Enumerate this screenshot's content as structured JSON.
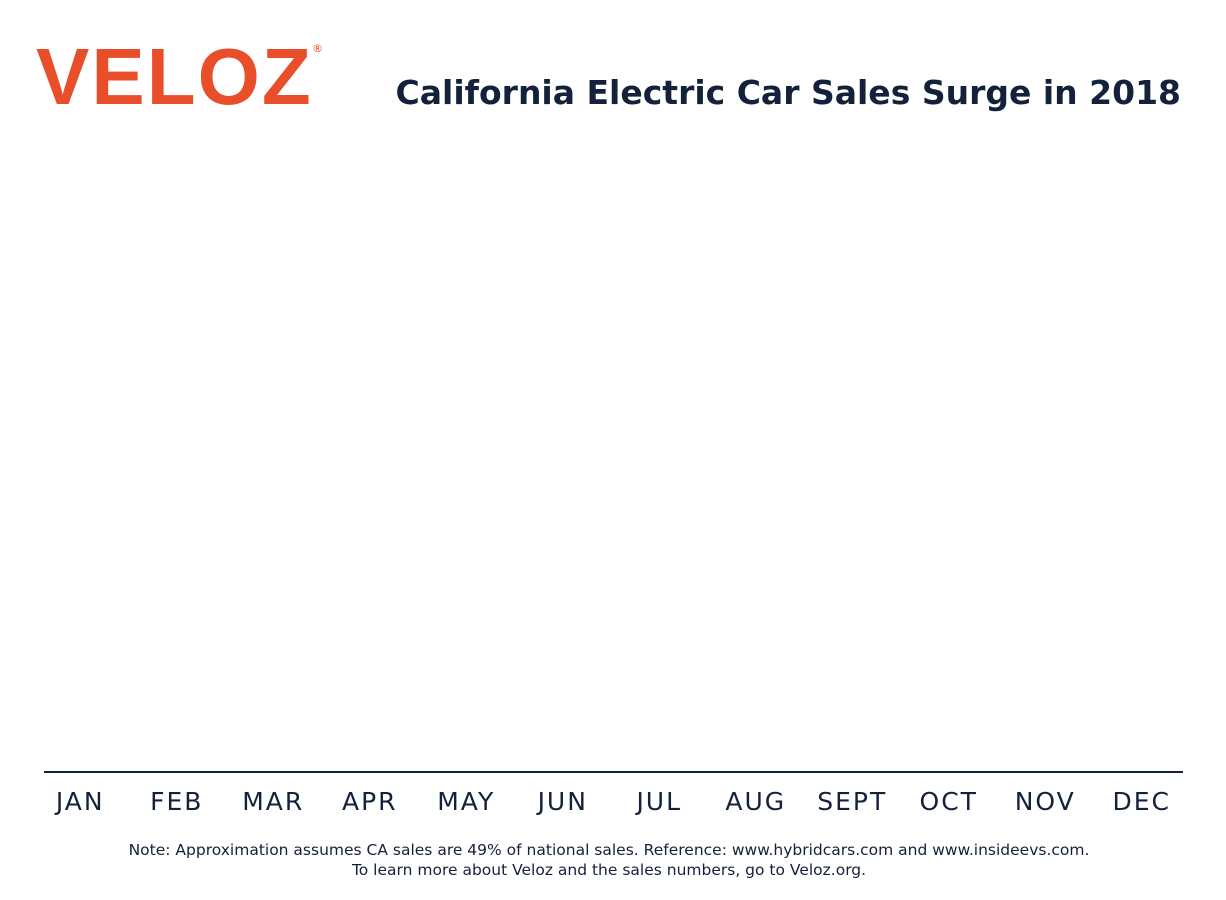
{
  "logo": "VELOZ",
  "logo_mark": "®",
  "chart_data": {
    "type": "bar",
    "title": "California Electric Car Sales Surge in 2018",
    "categories": [
      "JAN",
      "FEB",
      "MAR",
      "APR",
      "MAY",
      "JUN",
      "JUL",
      "AUG",
      "SEPT",
      "OCT",
      "NOV",
      "DEC"
    ],
    "notes": [
      "Note: Approximation assumes CA sales are 49% of national sales. Reference: www.hybridcars.com and www.insideevs.com.",
      "To learn more about Veloz and the sales numbers, go to Veloz.org."
    ]
  }
}
